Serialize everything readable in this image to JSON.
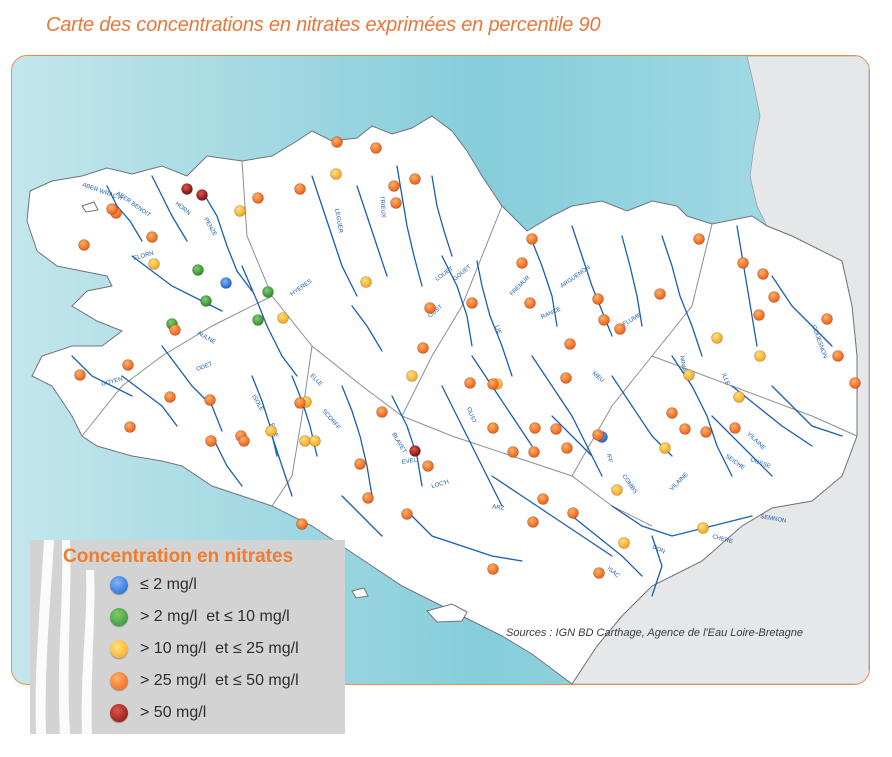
{
  "title": "Carte des concentrations en nitrates exprimées en percentile 90",
  "sources": "Sources : IGN BD Carthage, Agence de l'Eau Loire-Bretagne",
  "colors": {
    "c1": "#1f63c7",
    "c2": "#2f8a2c",
    "c3": "#f7b52f",
    "c4": "#f06b1f",
    "c5": "#9b1510",
    "sea": "#8fd0dc",
    "land": "#ffffff",
    "river": "#1a5fae",
    "accent": "#f07c2e"
  },
  "legend": {
    "title": "Concentration en nitrates",
    "items": [
      {
        "label": "≤ 2 mg/l",
        "class": "c1"
      },
      {
        "label": "> 2 mg/l  et ≤ 10 mg/l",
        "class": "c2"
      },
      {
        "label": "> 10 mg/l  et ≤ 25 mg/l",
        "class": "c3"
      },
      {
        "label": "> 25 mg/l  et ≤ 50 mg/l",
        "class": "c4"
      },
      {
        "label": "> 50 mg/l",
        "class": "c5"
      }
    ]
  },
  "river_labels": [
    "ABER WRAC'H",
    "ABER BENOIT",
    "ELORN",
    "AULNE",
    "GOYEN",
    "ODET",
    "ISOLE",
    "ELLE",
    "ELLE",
    "SCORFF",
    "BLAVET",
    "EVEL",
    "LOC'H",
    "OUST",
    "OUST",
    "ARZ",
    "VILAINE",
    "VILAINE",
    "SEMNON",
    "CHERE",
    "ISAC",
    "DON",
    "MEU",
    "IFF",
    "COMBS",
    "COUESNON",
    "LEGUER",
    "TRIEUX",
    "GOUET",
    "RANCE",
    "FREMUR",
    "ARGUENON",
    "LIE",
    "NINIAN",
    "ILLE",
    "FLUME",
    "SEICHE",
    "OUSSE",
    "PENZE",
    "HORN",
    "HYERES",
    "LOUET"
  ],
  "stations": [
    {
      "cls": "c5"
    },
    {
      "cls": "c5"
    },
    {
      "cls": "c5"
    },
    {
      "cls": "c1"
    },
    {
      "cls": "c1"
    },
    {
      "cls": "c2"
    },
    {
      "cls": "c2"
    },
    {
      "cls": "c2"
    },
    {
      "cls": "c2"
    },
    {
      "cls": "c2"
    },
    {
      "cls": "c3"
    },
    {
      "cls": "c3"
    },
    {
      "cls": "c3"
    },
    {
      "cls": "c3"
    },
    {
      "cls": "c3"
    },
    {
      "cls": "c3"
    },
    {
      "cls": "c3"
    },
    {
      "cls": "c3"
    },
    {
      "cls": "c3"
    },
    {
      "cls": "c3"
    },
    {
      "cls": "c3"
    },
    {
      "cls": "c3"
    },
    {
      "cls": "c3"
    },
    {
      "cls": "c3"
    },
    {
      "cls": "c3"
    },
    {
      "cls": "c3"
    },
    {
      "cls": "c3"
    },
    {
      "cls": "c3"
    },
    {
      "cls": "c3"
    },
    {
      "cls": "c4"
    },
    {
      "cls": "c4"
    },
    {
      "cls": "c4"
    },
    {
      "cls": "c4"
    },
    {
      "cls": "c4"
    },
    {
      "cls": "c4"
    },
    {
      "cls": "c4"
    },
    {
      "cls": "c4"
    },
    {
      "cls": "c4"
    },
    {
      "cls": "c4"
    },
    {
      "cls": "c4"
    },
    {
      "cls": "c4"
    },
    {
      "cls": "c4"
    },
    {
      "cls": "c4"
    },
    {
      "cls": "c4"
    },
    {
      "cls": "c4"
    },
    {
      "cls": "c4"
    },
    {
      "cls": "c4"
    },
    {
      "cls": "c4"
    },
    {
      "cls": "c4"
    },
    {
      "cls": "c4"
    },
    {
      "cls": "c4"
    },
    {
      "cls": "c4"
    },
    {
      "cls": "c4"
    },
    {
      "cls": "c4"
    },
    {
      "cls": "c4"
    },
    {
      "cls": "c4"
    },
    {
      "cls": "c4"
    },
    {
      "cls": "c4"
    },
    {
      "cls": "c4"
    },
    {
      "cls": "c4"
    },
    {
      "cls": "c4"
    },
    {
      "cls": "c4"
    },
    {
      "cls": "c4"
    },
    {
      "cls": "c4"
    },
    {
      "cls": "c4"
    },
    {
      "cls": "c4"
    },
    {
      "cls": "c4"
    },
    {
      "cls": "c4"
    },
    {
      "cls": "c4"
    },
    {
      "cls": "c4"
    },
    {
      "cls": "c4"
    },
    {
      "cls": "c4"
    },
    {
      "cls": "c4"
    },
    {
      "cls": "c4"
    },
    {
      "cls": "c4"
    },
    {
      "cls": "c4"
    },
    {
      "cls": "c4"
    },
    {
      "cls": "c4"
    },
    {
      "cls": "c4"
    },
    {
      "cls": "c4"
    },
    {
      "cls": "c4"
    },
    {
      "cls": "c4"
    },
    {
      "cls": "c4"
    },
    {
      "cls": "c4"
    },
    {
      "cls": "c4"
    },
    {
      "cls": "c4"
    },
    {
      "cls": "c4"
    },
    {
      "cls": "c4"
    },
    {
      "cls": "c4"
    },
    {
      "cls": "c4"
    },
    {
      "cls": "c4"
    },
    {
      "cls": "c4"
    },
    {
      "cls": "c4"
    },
    {
      "cls": "c4"
    }
  ]
}
